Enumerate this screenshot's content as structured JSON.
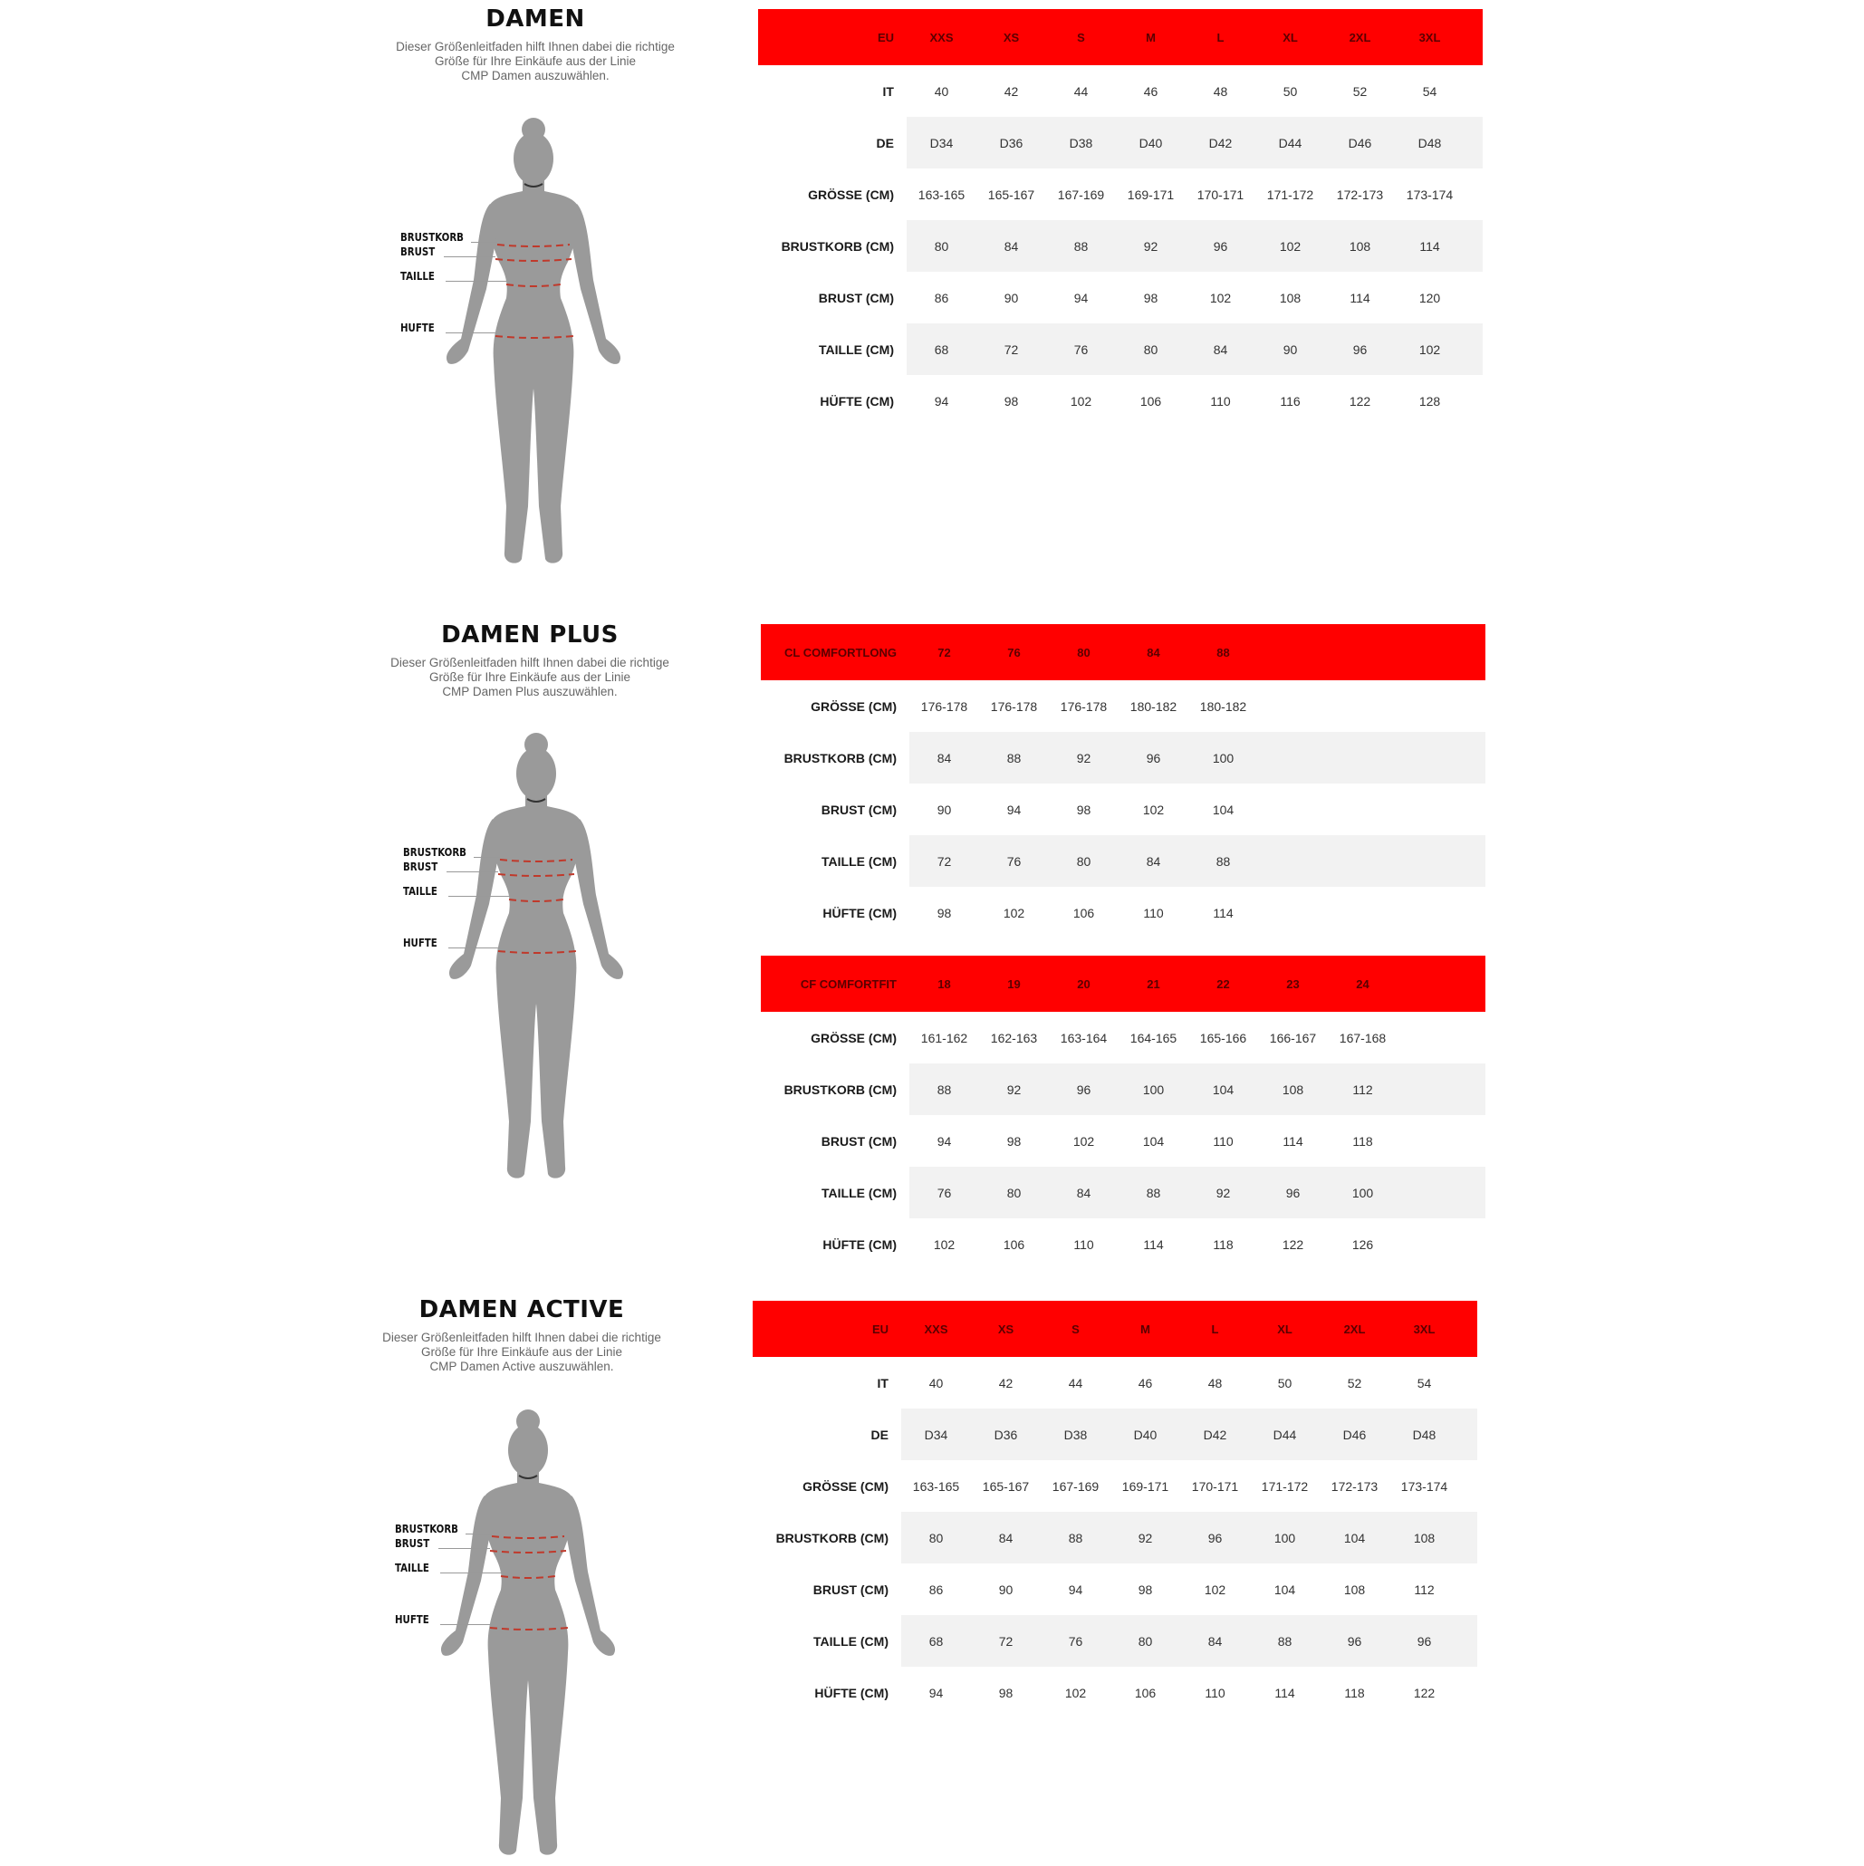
{
  "colors": {
    "header_red": "#ff0000",
    "stripe_gray": "#f2f2f2",
    "silhouette": "#9a9a9a",
    "measure_line": "#c0392b"
  },
  "figure_labels": {
    "brustkorb": "BRUSTKORB",
    "brust": "BRUST",
    "taille": "TAILLE",
    "hufte": "HUFTE"
  },
  "sections": [
    {
      "title": "DAMEN",
      "description": "Dieser Größenleitfaden hilft Ihnen dabei die richtige\nGröße für Ihre Einkäufe aus der Linie\nCMP Damen auszuwählen.",
      "tables": [
        {
          "header": {
            "label": "EU",
            "values": [
              "XXS",
              "XS",
              "S",
              "M",
              "L",
              "XL",
              "2XL",
              "3XL"
            ]
          },
          "rows": [
            {
              "label": "IT",
              "values": [
                "40",
                "42",
                "44",
                "46",
                "48",
                "50",
                "52",
                "54"
              ]
            },
            {
              "label": "DE",
              "values": [
                "D34",
                "D36",
                "D38",
                "D40",
                "D42",
                "D44",
                "D46",
                "D48"
              ]
            },
            {
              "label": "GRÖSSE (CM)",
              "values": [
                "163-165",
                "165-167",
                "167-169",
                "169-171",
                "170-171",
                "171-172",
                "172-173",
                "173-174"
              ]
            },
            {
              "label": "BRUSTKORB (CM)",
              "values": [
                "80",
                "84",
                "88",
                "92",
                "96",
                "102",
                "108",
                "114"
              ]
            },
            {
              "label": "BRUST (CM)",
              "values": [
                "86",
                "90",
                "94",
                "98",
                "102",
                "108",
                "114",
                "120"
              ]
            },
            {
              "label": "TAILLE (CM)",
              "values": [
                "68",
                "72",
                "76",
                "80",
                "84",
                "90",
                "96",
                "102"
              ]
            },
            {
              "label": "HÜFTE (CM)",
              "values": [
                "94",
                "98",
                "102",
                "106",
                "110",
                "116",
                "122",
                "128"
              ]
            }
          ]
        }
      ]
    },
    {
      "title": "DAMEN PLUS",
      "description": "Dieser Größenleitfaden hilft Ihnen dabei die richtige\nGröße für Ihre Einkäufe aus der Linie\nCMP Damen Plus auszuwählen.",
      "tables": [
        {
          "header": {
            "label": "CL COMFORTLONG",
            "values": [
              "72",
              "76",
              "80",
              "84",
              "88"
            ]
          },
          "rows": [
            {
              "label": "GRÖSSE (CM)",
              "values": [
                "176-178",
                "176-178",
                "176-178",
                "180-182",
                "180-182"
              ]
            },
            {
              "label": "BRUSTKORB (CM)",
              "values": [
                "84",
                "88",
                "92",
                "96",
                "100"
              ]
            },
            {
              "label": "BRUST (CM)",
              "values": [
                "90",
                "94",
                "98",
                "102",
                "104"
              ]
            },
            {
              "label": "TAILLE (CM)",
              "values": [
                "72",
                "76",
                "80",
                "84",
                "88"
              ]
            },
            {
              "label": "HÜFTE (CM)",
              "values": [
                "98",
                "102",
                "106",
                "110",
                "114"
              ]
            }
          ]
        },
        {
          "header": {
            "label": "CF COMFORTFIT",
            "values": [
              "18",
              "19",
              "20",
              "21",
              "22",
              "23",
              "24"
            ]
          },
          "rows": [
            {
              "label": "GRÖSSE (CM)",
              "values": [
                "161-162",
                "162-163",
                "163-164",
                "164-165",
                "165-166",
                "166-167",
                "167-168"
              ]
            },
            {
              "label": "BRUSTKORB (CM)",
              "values": [
                "88",
                "92",
                "96",
                "100",
                "104",
                "108",
                "112"
              ]
            },
            {
              "label": "BRUST (CM)",
              "values": [
                "94",
                "98",
                "102",
                "104",
                "110",
                "114",
                "118"
              ]
            },
            {
              "label": "TAILLE (CM)",
              "values": [
                "76",
                "80",
                "84",
                "88",
                "92",
                "96",
                "100"
              ]
            },
            {
              "label": "HÜFTE (CM)",
              "values": [
                "102",
                "106",
                "110",
                "114",
                "118",
                "122",
                "126"
              ]
            }
          ]
        }
      ]
    },
    {
      "title": "DAMEN ACTIVE",
      "description": "Dieser Größenleitfaden hilft Ihnen dabei die richtige\nGröße für Ihre Einkäufe aus der Linie\nCMP Damen Active auszuwählen.",
      "tables": [
        {
          "header": {
            "label": "EU",
            "values": [
              "XXS",
              "XS",
              "S",
              "M",
              "L",
              "XL",
              "2XL",
              "3XL"
            ]
          },
          "rows": [
            {
              "label": "IT",
              "values": [
                "40",
                "42",
                "44",
                "46",
                "48",
                "50",
                "52",
                "54"
              ]
            },
            {
              "label": "DE",
              "values": [
                "D34",
                "D36",
                "D38",
                "D40",
                "D42",
                "D44",
                "D46",
                "D48"
              ]
            },
            {
              "label": "GRÖSSE (CM)",
              "values": [
                "163-165",
                "165-167",
                "167-169",
                "169-171",
                "170-171",
                "171-172",
                "172-173",
                "173-174"
              ]
            },
            {
              "label": "BRUSTKORB (CM)",
              "values": [
                "80",
                "84",
                "88",
                "92",
                "96",
                "100",
                "104",
                "108"
              ]
            },
            {
              "label": "BRUST (CM)",
              "values": [
                "86",
                "90",
                "94",
                "98",
                "102",
                "104",
                "108",
                "112"
              ]
            },
            {
              "label": "TAILLE (CM)",
              "values": [
                "68",
                "72",
                "76",
                "80",
                "84",
                "88",
                "96",
                "96"
              ]
            },
            {
              "label": "HÜFTE (CM)",
              "values": [
                "94",
                "98",
                "102",
                "106",
                "110",
                "114",
                "118",
                "122"
              ]
            }
          ]
        }
      ]
    }
  ]
}
